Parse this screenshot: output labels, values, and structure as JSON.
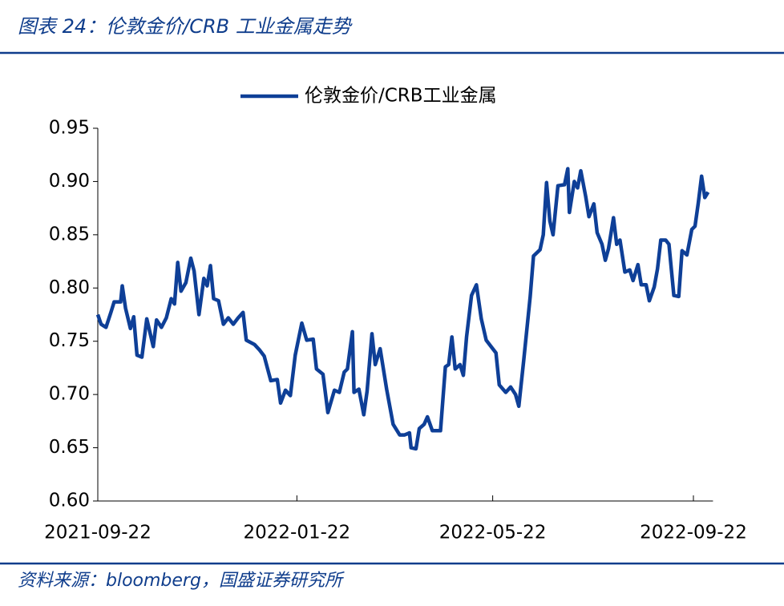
{
  "chart_data": {
    "type": "line",
    "title": "图表 24：伦敦金价/CRB 工业金属走势",
    "source": "资料来源：bloomberg，国盛证券研究所",
    "legend": "top",
    "ylim": [
      0.6,
      0.95
    ],
    "yticks": [
      {
        "value": 0.6,
        "label": "0.60"
      },
      {
        "value": 0.65,
        "label": "0.65"
      },
      {
        "value": 0.7,
        "label": "0.70"
      },
      {
        "value": 0.75,
        "label": "0.75"
      },
      {
        "value": 0.8,
        "label": "0.80"
      },
      {
        "value": 0.85,
        "label": "0.85"
      },
      {
        "value": 0.9,
        "label": "0.90"
      },
      {
        "value": 0.95,
        "label": "0.95"
      }
    ],
    "xticks": [
      "2021-09-22",
      "2022-01-22",
      "2022-05-22",
      "2022-09-22"
    ],
    "xlim": [
      "2021-09-22",
      "2022-10-04"
    ],
    "x": [
      "2021-09-22",
      "2021-09-24",
      "2021-09-27",
      "2021-09-30",
      "2021-10-02",
      "2021-10-06",
      "2021-10-07",
      "2021-10-09",
      "2021-10-12",
      "2021-10-14",
      "2021-10-16",
      "2021-10-19",
      "2021-10-22",
      "2021-10-26",
      "2021-10-28",
      "2021-10-31",
      "2021-11-03",
      "2021-11-06",
      "2021-11-08",
      "2021-11-10",
      "2021-11-12",
      "2021-11-15",
      "2021-11-18",
      "2021-11-20",
      "2021-11-23",
      "2021-11-26",
      "2021-11-28",
      "2021-11-30",
      "2021-12-02",
      "2021-12-05",
      "2021-12-08",
      "2021-12-11",
      "2021-12-14",
      "2021-12-17",
      "2021-12-20",
      "2021-12-22",
      "2021-12-27",
      "2021-12-30",
      "2022-01-02",
      "2022-01-06",
      "2022-01-10",
      "2022-01-12",
      "2022-01-15",
      "2022-01-18",
      "2022-01-21",
      "2022-01-25",
      "2022-01-28",
      "2022-02-01",
      "2022-02-03",
      "2022-02-07",
      "2022-02-10",
      "2022-02-14",
      "2022-02-17",
      "2022-02-20",
      "2022-02-22",
      "2022-02-25",
      "2022-02-26",
      "2022-03-01",
      "2022-03-04",
      "2022-03-06",
      "2022-03-09",
      "2022-03-11",
      "2022-03-14",
      "2022-03-18",
      "2022-03-22",
      "2022-03-26",
      "2022-03-29",
      "2022-04-01",
      "2022-04-02",
      "2022-04-05",
      "2022-04-07",
      "2022-04-10",
      "2022-04-12",
      "2022-04-15",
      "2022-04-20",
      "2022-04-23",
      "2022-04-25",
      "2022-04-27",
      "2022-04-29",
      "2022-05-02",
      "2022-05-04",
      "2022-05-06",
      "2022-05-09",
      "2022-05-12",
      "2022-05-15",
      "2022-05-18",
      "2022-05-21",
      "2022-05-24",
      "2022-05-26",
      "2022-05-30",
      "2022-06-02",
      "2022-06-05",
      "2022-06-07",
      "2022-06-10",
      "2022-06-14",
      "2022-06-16",
      "2022-06-20",
      "2022-06-22",
      "2022-06-24",
      "2022-06-26",
      "2022-06-28",
      "2022-07-01",
      "2022-07-05",
      "2022-07-07",
      "2022-07-08",
      "2022-07-11",
      "2022-07-13",
      "2022-07-15",
      "2022-07-18",
      "2022-07-20",
      "2022-07-23",
      "2022-07-25",
      "2022-07-28",
      "2022-07-30",
      "2022-08-01",
      "2022-08-04",
      "2022-08-06",
      "2022-08-08",
      "2022-08-11",
      "2022-08-14",
      "2022-08-16",
      "2022-08-19",
      "2022-08-21",
      "2022-08-24",
      "2022-08-26",
      "2022-08-29",
      "2022-08-31",
      "2022-09-02",
      "2022-09-05",
      "2022-09-07",
      "2022-09-10",
      "2022-09-13",
      "2022-09-15",
      "2022-09-18",
      "2022-09-21",
      "2022-09-23",
      "2022-09-25",
      "2022-09-27",
      "2022-09-29",
      "2022-10-01"
    ],
    "series": [
      {
        "name": "伦敦金价/CRB工业金属",
        "color": "#0e3f97",
        "values": [
          0.775,
          0.766,
          0.763,
          0.777,
          0.787,
          0.787,
          0.802,
          0.781,
          0.762,
          0.773,
          0.737,
          0.735,
          0.771,
          0.745,
          0.77,
          0.763,
          0.772,
          0.79,
          0.785,
          0.824,
          0.797,
          0.805,
          0.828,
          0.816,
          0.775,
          0.809,
          0.802,
          0.821,
          0.79,
          0.788,
          0.766,
          0.772,
          0.766,
          0.772,
          0.777,
          0.751,
          0.747,
          0.742,
          0.736,
          0.713,
          0.714,
          0.692,
          0.704,
          0.699,
          0.737,
          0.767,
          0.751,
          0.752,
          0.724,
          0.719,
          0.683,
          0.704,
          0.702,
          0.721,
          0.724,
          0.759,
          0.702,
          0.705,
          0.681,
          0.703,
          0.757,
          0.728,
          0.743,
          0.705,
          0.672,
          0.662,
          0.662,
          0.664,
          0.65,
          0.649,
          0.668,
          0.672,
          0.679,
          0.666,
          0.666,
          0.726,
          0.728,
          0.754,
          0.724,
          0.728,
          0.718,
          0.754,
          0.793,
          0.803,
          0.771,
          0.751,
          0.745,
          0.739,
          0.709,
          0.702,
          0.707,
          0.7,
          0.689,
          0.732,
          0.792,
          0.83,
          0.836,
          0.85,
          0.899,
          0.863,
          0.85,
          0.896,
          0.897,
          0.912,
          0.871,
          0.9,
          0.894,
          0.91,
          0.886,
          0.867,
          0.879,
          0.852,
          0.841,
          0.826,
          0.837,
          0.866,
          0.841,
          0.845,
          0.815,
          0.817,
          0.807,
          0.822,
          0.803,
          0.803,
          0.788,
          0.801,
          0.818,
          0.845,
          0.845,
          0.841,
          0.793,
          0.792,
          0.835,
          0.831,
          0.855,
          0.858,
          0.88,
          0.905,
          0.885,
          0.89
        ]
      }
    ]
  }
}
